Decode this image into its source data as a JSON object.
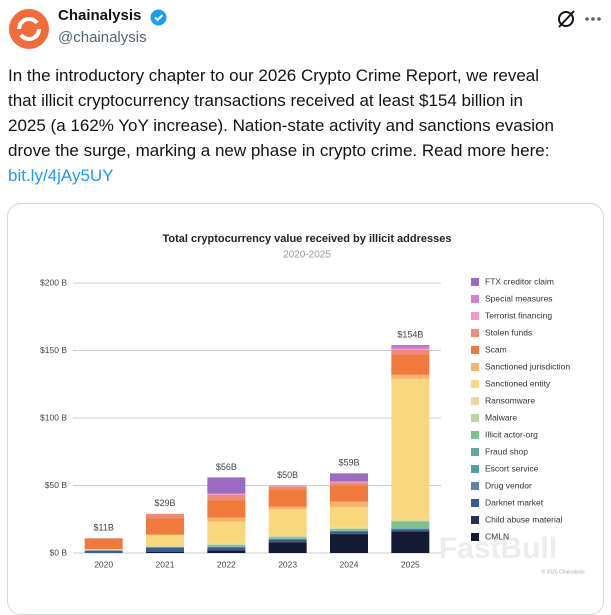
{
  "tweet": {
    "name": "Chainalysis",
    "handle": "@chainalysis",
    "text_lines": [
      "In the introductory chapter to our 2026 Crypto Crime Report, we reveal",
      "that illicit cryptocurrency transactions received at least $154 billion in",
      "2025 (a 162% YoY increase). Nation-state activity and sanctions evasion",
      "drove the surge, marking a new phase in crypto crime. Read more here:"
    ],
    "link": "bit.ly/4jAy5UY",
    "watermark": "FastBull",
    "credit": "© 2026 Chainalysis"
  },
  "chart_data": {
    "type": "stacked-bar",
    "title": "Total cryptocurrency value received by illicit addresses",
    "subtitle": "2020-2025",
    "categories": [
      "2020",
      "2021",
      "2022",
      "2023",
      "2024",
      "2025"
    ],
    "ylim": [
      0,
      200
    ],
    "yticks": [
      {
        "value": 0,
        "label": "$0 B"
      },
      {
        "value": 50,
        "label": "$50 B"
      },
      {
        "value": 100,
        "label": "$100 B"
      },
      {
        "value": 150,
        "label": "$150 B"
      },
      {
        "value": 200,
        "label": "$200 B"
      }
    ],
    "grid": true,
    "legend": "right",
    "totals": {
      "values": [
        11,
        29,
        56,
        50,
        59,
        154
      ],
      "value_labels": [
        "$11B",
        "$29B",
        "$56B",
        "$50B",
        "$59B",
        "$154B"
      ]
    },
    "series": [
      {
        "name": "FTX creditor claim",
        "color": "#9b6bc4",
        "values": [
          0,
          0,
          12,
          0,
          6,
          1
        ]
      },
      {
        "name": "Special measures",
        "color": "#d67fd6",
        "values": [
          0,
          0,
          0,
          0,
          0,
          2
        ]
      },
      {
        "name": "Terrorist financing",
        "color": "#f39ac4",
        "values": [
          0,
          0,
          0.8,
          0.7,
          0.7,
          0.6
        ]
      },
      {
        "name": "Stolen funds",
        "color": "#f08a78",
        "values": [
          0.6,
          3.4,
          4,
          2,
          2.2,
          3.4
        ]
      },
      {
        "name": "Scam",
        "color": "#f07a3c",
        "values": [
          7.5,
          12,
          13,
          13,
          12,
          15
        ]
      },
      {
        "name": "Sanctioned jurisdiction",
        "color": "#f7b36b",
        "values": [
          0,
          0,
          3,
          2,
          4,
          3
        ]
      },
      {
        "name": "Sanctioned entity",
        "color": "#f9d77e",
        "values": [
          0.5,
          8,
          16,
          19,
          15,
          104.5
        ]
      },
      {
        "name": "Ransomware",
        "color": "#f1d3a0",
        "values": [
          0.4,
          0.8,
          0.7,
          1,
          0.8,
          0.5
        ]
      },
      {
        "name": "Malware",
        "color": "#b5d99c",
        "values": [
          0.2,
          0.3,
          0.5,
          0.5,
          0.5,
          0.5
        ]
      },
      {
        "name": "Illicit actor-org",
        "color": "#7fc28a",
        "values": [
          0,
          0,
          1,
          1,
          1,
          5
        ]
      },
      {
        "name": "Fraud shop",
        "color": "#5fa89a",
        "values": [
          0,
          0.2,
          0.3,
          0.3,
          0.3,
          0.5
        ]
      },
      {
        "name": "Escort service",
        "color": "#4f9bb0",
        "values": [
          0,
          0,
          0.1,
          0.1,
          0.1,
          0.1
        ]
      },
      {
        "name": "Drug vendor",
        "color": "#5b84ad",
        "values": [
          0,
          0.3,
          0.3,
          0.3,
          0.3,
          0.3
        ]
      },
      {
        "name": "Darknet market",
        "color": "#3b5b93",
        "values": [
          1.8,
          3,
          2.2,
          2,
          2,
          1.5
        ]
      },
      {
        "name": "Child abuse material",
        "color": "#23305e",
        "values": [
          0,
          0,
          0.1,
          0.1,
          0.1,
          0.1
        ]
      },
      {
        "name": "CMLN",
        "color": "#141a33",
        "values": [
          0,
          1,
          2,
          8,
          14,
          16
        ]
      }
    ]
  }
}
